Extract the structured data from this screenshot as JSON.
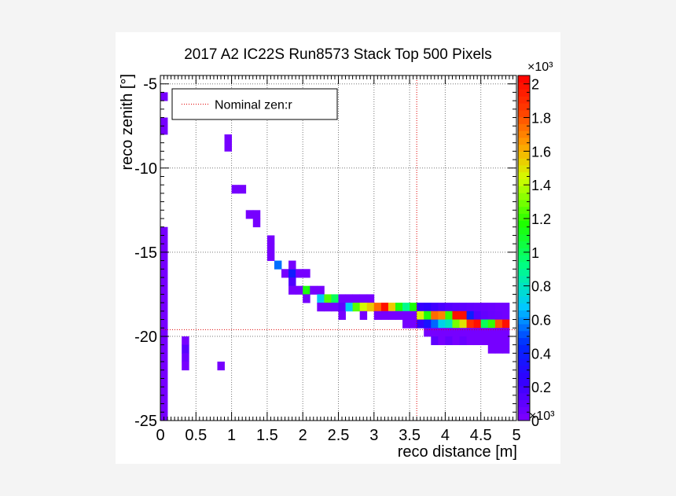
{
  "chart_data": {
    "type": "heatmap",
    "title": "2017 A2 IC22S Run8573 Stack Top 500 Pixels",
    "xlabel": "reco distance [m]",
    "ylabel": "reco zenith [°]",
    "xlim": [
      0,
      5
    ],
    "ylim": [
      -25,
      -4.5
    ],
    "x_tick_labels": [
      "0",
      "0.5",
      "1",
      "1.5",
      "2",
      "2.5",
      "3",
      "3.5",
      "4",
      "4.5",
      "5"
    ],
    "y_tick_labels": [
      "-5",
      "-10",
      "-15",
      "-20",
      "-25"
    ],
    "x_multiplier": "×10³",
    "z_range": [
      0,
      2050
    ],
    "z_multiplier": "×10³",
    "z_tick_labels": [
      "0",
      "0.2",
      "0.4",
      "0.6",
      "0.8",
      "1",
      "1.2",
      "1.4",
      "1.6",
      "1.8",
      "2"
    ],
    "grid": true,
    "legend": {
      "position": "top-left",
      "entries": [
        {
          "label": "Nominal zen:r",
          "style": "red dotted line"
        }
      ]
    },
    "reference_lines": {
      "x": 3.6,
      "y": -19.6
    },
    "bin_width": 0.1,
    "bin_height": 0.5,
    "bins": [
      [
        0.05,
        -5.75,
        30
      ],
      [
        0.05,
        -7.25,
        30
      ],
      [
        0.05,
        -7.75,
        30
      ],
      [
        0.05,
        -13.75,
        30
      ],
      [
        0.05,
        -14.25,
        30
      ],
      [
        0.05,
        -14.75,
        30
      ],
      [
        0.05,
        -15.25,
        30
      ],
      [
        0.05,
        -15.75,
        30
      ],
      [
        0.05,
        -16.25,
        30
      ],
      [
        0.05,
        -16.75,
        30
      ],
      [
        0.05,
        -17.25,
        30
      ],
      [
        0.05,
        -17.75,
        30
      ],
      [
        0.05,
        -18.25,
        30
      ],
      [
        0.05,
        -18.75,
        30
      ],
      [
        0.05,
        -19.25,
        30
      ],
      [
        0.05,
        -19.75,
        30
      ],
      [
        0.05,
        -20.25,
        30
      ],
      [
        0.05,
        -20.75,
        30
      ],
      [
        0.05,
        -21.25,
        30
      ],
      [
        0.05,
        -21.75,
        30
      ],
      [
        0.05,
        -22.25,
        30
      ],
      [
        0.05,
        -22.75,
        30
      ],
      [
        0.05,
        -23.25,
        30
      ],
      [
        0.05,
        -23.75,
        30
      ],
      [
        0.05,
        -24.25,
        30
      ],
      [
        0.05,
        -24.75,
        30
      ],
      [
        0.35,
        -20.25,
        30
      ],
      [
        0.35,
        -20.75,
        120
      ],
      [
        0.35,
        -21.25,
        60
      ],
      [
        0.35,
        -21.75,
        30
      ],
      [
        0.85,
        -21.75,
        30
      ],
      [
        0.95,
        -8.25,
        30
      ],
      [
        0.95,
        -8.75,
        30
      ],
      [
        1.05,
        -11.25,
        30
      ],
      [
        1.15,
        -11.25,
        30
      ],
      [
        1.25,
        -12.75,
        30
      ],
      [
        1.35,
        -12.75,
        30
      ],
      [
        1.35,
        -13.25,
        30
      ],
      [
        1.55,
        -14.25,
        30
      ],
      [
        1.55,
        -14.75,
        30
      ],
      [
        1.55,
        -15.25,
        30
      ],
      [
        1.65,
        -15.75,
        550
      ],
      [
        1.75,
        -16.25,
        30
      ],
      [
        1.85,
        -16.25,
        380
      ],
      [
        1.85,
        -15.75,
        30
      ],
      [
        1.85,
        -16.75,
        150
      ],
      [
        1.85,
        -17.25,
        30
      ],
      [
        1.95,
        -16.25,
        30
      ],
      [
        1.95,
        -17.25,
        30
      ],
      [
        2.05,
        -16.25,
        30
      ],
      [
        2.05,
        -17.25,
        1150
      ],
      [
        2.05,
        -17.75,
        30
      ],
      [
        2.15,
        -17.25,
        30
      ],
      [
        2.25,
        -17.25,
        30
      ],
      [
        2.25,
        -17.75,
        700
      ],
      [
        2.25,
        -18.25,
        30
      ],
      [
        2.35,
        -17.75,
        1250
      ],
      [
        2.35,
        -18.25,
        30
      ],
      [
        2.45,
        -17.75,
        1000
      ],
      [
        2.45,
        -18.25,
        30
      ],
      [
        2.55,
        -17.75,
        30
      ],
      [
        2.65,
        -17.75,
        30
      ],
      [
        2.75,
        -17.75,
        30
      ],
      [
        2.85,
        -17.75,
        30
      ],
      [
        2.95,
        -17.75,
        30
      ],
      [
        2.55,
        -18.25,
        100
      ],
      [
        2.55,
        -18.75,
        30
      ],
      [
        2.65,
        -18.25,
        700
      ],
      [
        2.75,
        -18.25,
        1250
      ],
      [
        2.85,
        -18.25,
        1450
      ],
      [
        2.95,
        -18.25,
        1550
      ],
      [
        3.05,
        -18.25,
        1750
      ],
      [
        3.15,
        -18.25,
        2000
      ],
      [
        3.25,
        -18.25,
        1550
      ],
      [
        3.35,
        -18.25,
        1150
      ],
      [
        3.45,
        -18.25,
        900
      ],
      [
        3.55,
        -18.25,
        1150
      ],
      [
        3.65,
        -18.25,
        230
      ],
      [
        3.75,
        -18.25,
        260
      ],
      [
        3.85,
        -18.25,
        200
      ],
      [
        3.95,
        -18.25,
        160
      ],
      [
        4.05,
        -18.25,
        130
      ],
      [
        4.15,
        -18.25,
        110
      ],
      [
        4.25,
        -18.25,
        100
      ],
      [
        4.35,
        -18.25,
        90
      ],
      [
        4.45,
        -18.25,
        80
      ],
      [
        4.55,
        -18.25,
        70
      ],
      [
        4.65,
        -18.25,
        60
      ],
      [
        4.75,
        -18.25,
        50
      ],
      [
        4.85,
        -18.25,
        50
      ],
      [
        2.85,
        -18.75,
        30
      ],
      [
        3.05,
        -18.75,
        30
      ],
      [
        3.15,
        -18.75,
        30
      ],
      [
        3.25,
        -18.75,
        30
      ],
      [
        3.35,
        -18.75,
        30
      ],
      [
        3.45,
        -18.75,
        30
      ],
      [
        3.55,
        -18.75,
        30
      ],
      [
        3.65,
        -18.75,
        1450
      ],
      [
        3.75,
        -18.75,
        1150
      ],
      [
        3.85,
        -18.75,
        1750
      ],
      [
        3.95,
        -18.75,
        1700
      ],
      [
        4.05,
        -18.75,
        1200
      ],
      [
        4.15,
        -18.75,
        2000
      ],
      [
        4.25,
        -18.75,
        2000
      ],
      [
        4.35,
        -18.75,
        400
      ],
      [
        4.45,
        -18.75,
        130
      ],
      [
        4.55,
        -18.75,
        90
      ],
      [
        4.65,
        -18.75,
        70
      ],
      [
        4.75,
        -18.75,
        60
      ],
      [
        4.85,
        -18.75,
        50
      ],
      [
        3.45,
        -19.25,
        30
      ],
      [
        3.55,
        -19.25,
        30
      ],
      [
        3.65,
        -19.25,
        230
      ],
      [
        3.75,
        -19.25,
        350
      ],
      [
        3.85,
        -19.25,
        540
      ],
      [
        3.95,
        -19.25,
        720
      ],
      [
        4.05,
        -19.25,
        800
      ],
      [
        4.15,
        -19.25,
        1300
      ],
      [
        4.25,
        -19.25,
        1500
      ],
      [
        4.35,
        -19.25,
        1900
      ],
      [
        4.45,
        -19.25,
        2000
      ],
      [
        4.55,
        -19.25,
        1000
      ],
      [
        4.65,
        -19.25,
        1200
      ],
      [
        4.75,
        -19.25,
        1800
      ],
      [
        4.85,
        -19.25,
        2000
      ],
      [
        3.75,
        -19.75,
        30
      ],
      [
        3.85,
        -19.75,
        30
      ],
      [
        3.95,
        -19.75,
        30
      ],
      [
        4.05,
        -19.75,
        30
      ],
      [
        4.15,
        -19.75,
        30
      ],
      [
        4.25,
        -19.75,
        30
      ],
      [
        4.35,
        -19.75,
        30
      ],
      [
        4.45,
        -19.75,
        30
      ],
      [
        4.55,
        -19.75,
        30
      ],
      [
        4.65,
        -19.75,
        30
      ],
      [
        4.75,
        -19.75,
        30
      ],
      [
        4.85,
        -19.75,
        30
      ],
      [
        3.85,
        -20.25,
        100
      ],
      [
        3.95,
        -20.25,
        30
      ],
      [
        4.05,
        -20.25,
        80
      ],
      [
        4.15,
        -20.25,
        30
      ],
      [
        4.25,
        -20.25,
        70
      ],
      [
        4.35,
        -20.25,
        30
      ],
      [
        4.45,
        -20.25,
        30
      ],
      [
        4.55,
        -20.25,
        30
      ],
      [
        4.65,
        -20.25,
        30
      ],
      [
        4.75,
        -20.25,
        30
      ],
      [
        4.85,
        -20.25,
        30
      ],
      [
        4.65,
        -20.75,
        30
      ],
      [
        4.75,
        -20.75,
        30
      ],
      [
        4.85,
        -20.75,
        30
      ]
    ]
  }
}
